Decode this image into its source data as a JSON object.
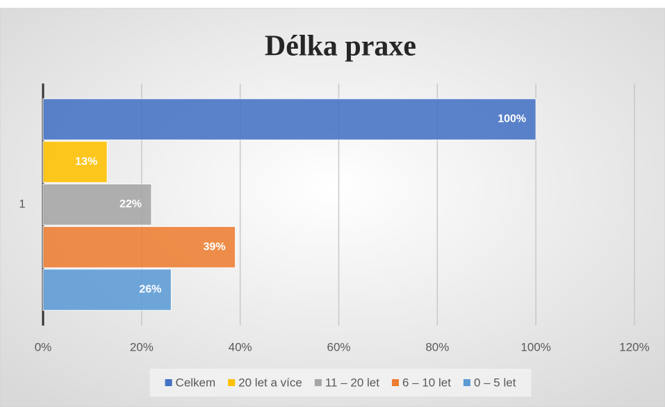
{
  "chart_data": {
    "type": "bar",
    "orientation": "horizontal",
    "title": "Délka praxe",
    "categories": [
      "1"
    ],
    "series": [
      {
        "name": "Celkem",
        "color": "#4472c4",
        "values": [
          100
        ],
        "value_labels": [
          "100%"
        ]
      },
      {
        "name": "20 let a více",
        "color": "#ffc000",
        "values": [
          13
        ],
        "value_labels": [
          "13%"
        ]
      },
      {
        "name": "11 – 20 let",
        "color": "#a5a5a5",
        "values": [
          22
        ],
        "value_labels": [
          "22%"
        ]
      },
      {
        "name": "6 – 10 let",
        "color": "#ed7d31",
        "values": [
          39
        ],
        "value_labels": [
          "39%"
        ]
      },
      {
        "name": "0 – 5 let",
        "color": "#5b9bd5",
        "values": [
          26
        ],
        "value_labels": [
          "26%"
        ]
      }
    ],
    "xlim": [
      0,
      120
    ],
    "xticks": [
      {
        "value": 0,
        "label": "0%"
      },
      {
        "value": 20,
        "label": "20%"
      },
      {
        "value": 40,
        "label": "40%"
      },
      {
        "value": 60,
        "label": "60%"
      },
      {
        "value": 80,
        "label": "80%"
      },
      {
        "value": 100,
        "label": "100%"
      },
      {
        "value": 120,
        "label": "120%"
      }
    ],
    "grid": true,
    "legend": "bottom"
  }
}
